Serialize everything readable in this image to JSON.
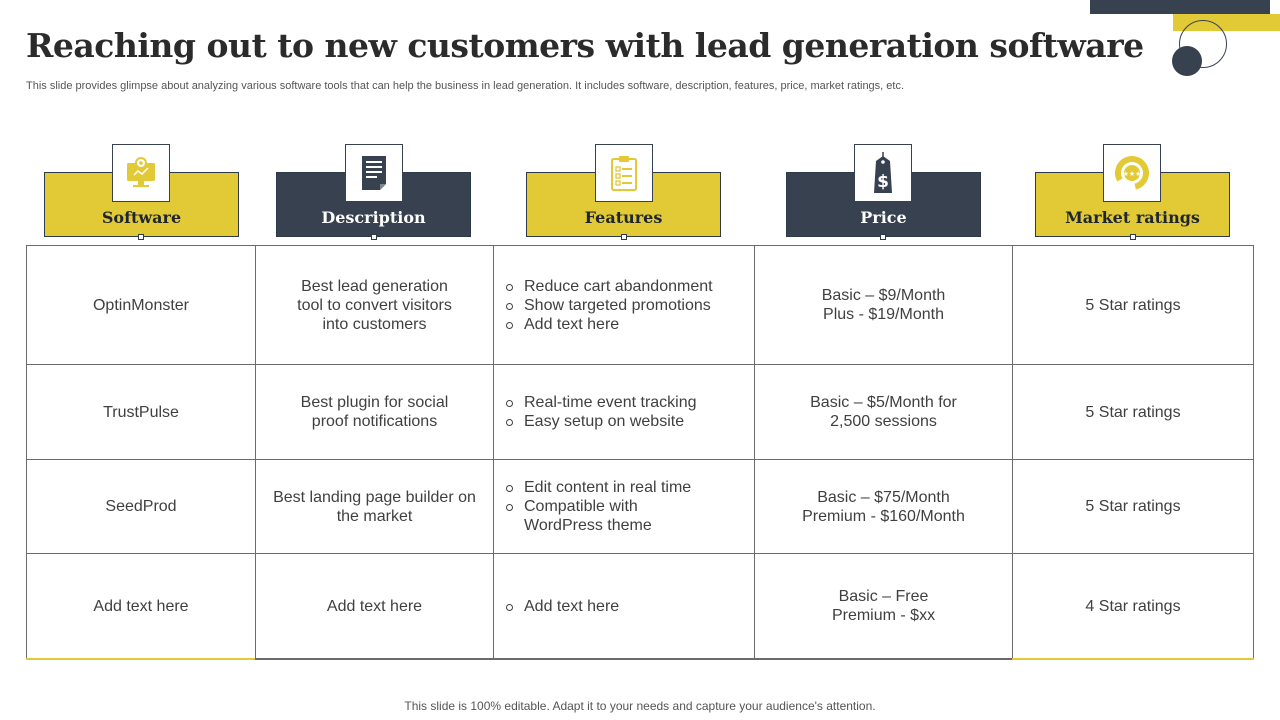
{
  "title": "Reaching out to new customers with lead generation software",
  "subtitle": "This slide provides glimpse about analyzing various software tools that can help the business in lead generation. It includes software, description, features, price, market ratings, etc.",
  "headers": [
    {
      "label": "Software",
      "icon": "computer-gear-icon",
      "color": "#e2c936"
    },
    {
      "label": "Description",
      "icon": "document-icon",
      "color": "#37414f"
    },
    {
      "label": "Features",
      "icon": "clipboard-checklist-icon",
      "color": "#e2c936"
    },
    {
      "label": "Price",
      "icon": "price-tag-icon",
      "color": "#37414f"
    },
    {
      "label": "Market ratings",
      "icon": "rating-gauge-icon",
      "color": "#e2c936"
    }
  ],
  "rows": [
    {
      "software": "OptinMonster",
      "description": [
        "Best lead generation",
        "tool to convert visitors",
        "into customers"
      ],
      "features": [
        "Reduce cart abandonment",
        "Show targeted promotions",
        "Add text here"
      ],
      "price": [
        "Basic – $9/Month",
        "Plus - $19/Month"
      ],
      "rating": "5 Star ratings"
    },
    {
      "software": "TrustPulse",
      "description": [
        "Best plugin for social",
        "proof notifications"
      ],
      "features": [
        "Real-time event tracking",
        "Easy setup on website"
      ],
      "price": [
        "Basic – $5/Month for",
        "2,500 sessions"
      ],
      "rating": "5 Star ratings"
    },
    {
      "software": "SeedProd",
      "description": [
        "Best landing page builder on",
        "the market"
      ],
      "features": [
        "Edit content in real time",
        "Compatible with WordPress theme"
      ],
      "price": [
        "Basic – $75/Month",
        "Premium - $160/Month"
      ],
      "rating": "5 Star ratings"
    },
    {
      "software": "Add text here",
      "description": [
        "Add text here"
      ],
      "features": [
        "Add text here"
      ],
      "price": [
        "Basic – Free",
        "Premium - $xx"
      ],
      "rating": "4 Star ratings"
    }
  ],
  "footer": "This slide is 100% editable. Adapt it to your needs and capture your audience's attention.",
  "colors": {
    "accent": "#e2c936",
    "dark": "#37414f"
  }
}
